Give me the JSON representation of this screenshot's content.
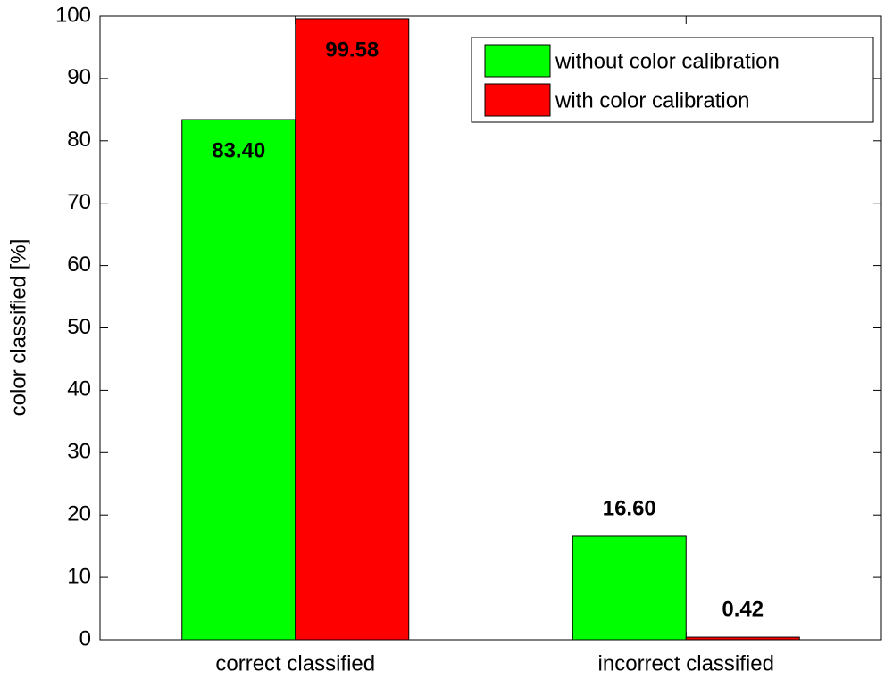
{
  "chart_data": {
    "type": "bar",
    "y_label": "color classified [%]",
    "categories": [
      "correct classified",
      "incorrect classified"
    ],
    "series": [
      {
        "name": "without color calibration",
        "color": "#00ff00",
        "values": [
          83.4,
          16.6
        ],
        "value_labels": [
          "83.40",
          "16.60"
        ]
      },
      {
        "name": "with color calibration",
        "color": "#ff0000",
        "values": [
          99.58,
          0.42
        ],
        "value_labels": [
          "99.58",
          "0.42"
        ]
      }
    ],
    "ylim": [
      0,
      100
    ],
    "yticks": [
      0,
      10,
      20,
      30,
      40,
      50,
      60,
      70,
      80,
      90,
      100
    ],
    "legend": "northeast",
    "grid": false
  }
}
